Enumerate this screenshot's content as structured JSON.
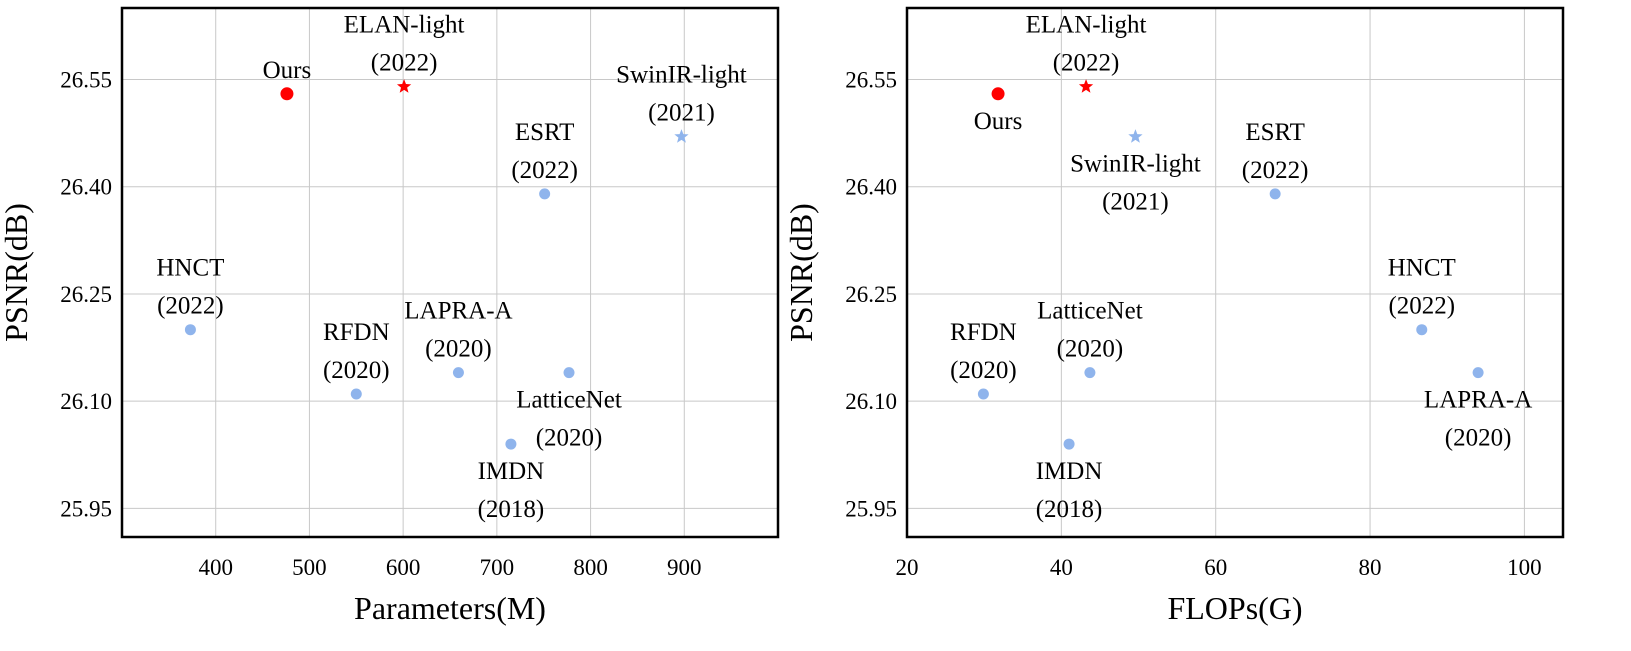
{
  "colors": {
    "highlight": "#ff0000",
    "baseline": "#8fb4ec",
    "grid": "#c8c8c8"
  },
  "chart_data": [
    {
      "type": "scatter",
      "xlabel": "Parameters(M)",
      "ylabel": "PSNR(dB)",
      "xlim": [
        300,
        1000
      ],
      "ylim": [
        25.91,
        26.65
      ],
      "xticks": [
        400,
        500,
        600,
        700,
        800,
        900
      ],
      "xtick_labels": [
        "400",
        "500",
        "600",
        "700",
        "800",
        "900"
      ],
      "yticks": [
        25.95,
        26.1,
        26.25,
        26.4,
        26.55
      ],
      "ytick_labels": [
        "25.95",
        "26.10",
        "26.25",
        "26.40",
        "26.55"
      ],
      "grid": true,
      "points": [
        {
          "name": "Ours",
          "lines": [
            "Ours"
          ],
          "x": 476,
          "y": 26.53,
          "marker": "circle",
          "color": "#ff0000",
          "label_pos": "above"
        },
        {
          "name": "ELAN-light",
          "lines": [
            "ELAN-light",
            "(2022)"
          ],
          "x": 601,
          "y": 26.54,
          "marker": "star",
          "color": "#ff0000",
          "label_pos": "above"
        },
        {
          "name": "SwinIR-light",
          "lines": [
            "SwinIR-light",
            "(2021)"
          ],
          "x": 897,
          "y": 26.47,
          "marker": "star",
          "color": "#8fb4ec",
          "label_pos": "above"
        },
        {
          "name": "ESRT",
          "lines": [
            "ESRT",
            "(2022)"
          ],
          "x": 751,
          "y": 26.39,
          "marker": "circle",
          "color": "#8fb4ec",
          "label_pos": "above"
        },
        {
          "name": "HNCT",
          "lines": [
            "HNCT",
            "(2022)"
          ],
          "x": 373,
          "y": 26.2,
          "marker": "circle",
          "color": "#8fb4ec",
          "label_pos": "above"
        },
        {
          "name": "RFDN",
          "lines": [
            "RFDN",
            "(2020)"
          ],
          "x": 550,
          "y": 26.11,
          "marker": "circle",
          "color": "#8fb4ec",
          "label_pos": "above"
        },
        {
          "name": "LAPRA-A",
          "lines": [
            "LAPRA-A",
            "(2020)"
          ],
          "x": 659,
          "y": 26.14,
          "marker": "circle",
          "color": "#8fb4ec",
          "label_pos": "above"
        },
        {
          "name": "LatticeNet",
          "lines": [
            "LatticeNet",
            "(2020)"
          ],
          "x": 777,
          "y": 26.14,
          "marker": "circle",
          "color": "#8fb4ec",
          "label_pos": "below"
        },
        {
          "name": "IMDN",
          "lines": [
            "IMDN",
            "(2018)"
          ],
          "x": 715,
          "y": 26.04,
          "marker": "circle",
          "color": "#8fb4ec",
          "label_pos": "below"
        }
      ]
    },
    {
      "type": "scatter",
      "xlabel": "FLOPs(G)",
      "ylabel": "PSNR(dB)",
      "xlim": [
        20,
        105
      ],
      "ylim": [
        25.91,
        26.65
      ],
      "xticks": [
        20,
        40,
        60,
        80,
        100
      ],
      "xtick_labels": [
        "20",
        "40",
        "60",
        "80",
        "100"
      ],
      "yticks": [
        25.95,
        26.1,
        26.25,
        26.4,
        26.55
      ],
      "ytick_labels": [
        "25.95",
        "26.10",
        "26.25",
        "26.40",
        "26.55"
      ],
      "grid": true,
      "points": [
        {
          "name": "Ours",
          "lines": [
            "Ours"
          ],
          "x": 31.8,
          "y": 26.53,
          "marker": "circle",
          "color": "#ff0000",
          "label_pos": "below"
        },
        {
          "name": "ELAN-light",
          "lines": [
            "ELAN-light",
            "(2022)"
          ],
          "x": 43.2,
          "y": 26.54,
          "marker": "star",
          "color": "#ff0000",
          "label_pos": "above"
        },
        {
          "name": "SwinIR-light",
          "lines": [
            "SwinIR-light",
            "(2021)"
          ],
          "x": 49.6,
          "y": 26.47,
          "marker": "star",
          "color": "#8fb4ec",
          "label_pos": "below"
        },
        {
          "name": "ESRT",
          "lines": [
            "ESRT",
            "(2022)"
          ],
          "x": 67.7,
          "y": 26.39,
          "marker": "circle",
          "color": "#8fb4ec",
          "label_pos": "above"
        },
        {
          "name": "HNCT",
          "lines": [
            "HNCT",
            "(2022)"
          ],
          "x": 86.7,
          "y": 26.2,
          "marker": "circle",
          "color": "#8fb4ec",
          "label_pos": "above"
        },
        {
          "name": "RFDN",
          "lines": [
            "RFDN",
            "(2020)"
          ],
          "x": 29.9,
          "y": 26.11,
          "marker": "circle",
          "color": "#8fb4ec",
          "label_pos": "above"
        },
        {
          "name": "LatticeNet",
          "lines": [
            "LatticeNet",
            "(2020)"
          ],
          "x": 43.7,
          "y": 26.14,
          "marker": "circle",
          "color": "#8fb4ec",
          "label_pos": "above"
        },
        {
          "name": "IMDN",
          "lines": [
            "IMDN",
            "(2018)"
          ],
          "x": 41.0,
          "y": 26.04,
          "marker": "circle",
          "color": "#8fb4ec",
          "label_pos": "below"
        },
        {
          "name": "LAPRA-A",
          "lines": [
            "LAPRA-A",
            "(2020)"
          ],
          "x": 94.0,
          "y": 26.14,
          "marker": "circle",
          "color": "#8fb4ec",
          "label_pos": "below"
        }
      ]
    }
  ]
}
